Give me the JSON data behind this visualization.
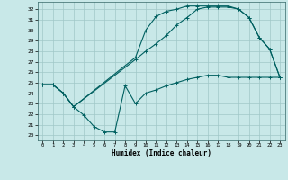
{
  "xlabel": "Humidex (Indice chaleur)",
  "bg_color": "#c8e8e8",
  "grid_color": "#a0c8c8",
  "line_color": "#006060",
  "xlim": [
    -0.5,
    23.5
  ],
  "ylim": [
    19.5,
    32.7
  ],
  "yticks": [
    20,
    21,
    22,
    23,
    24,
    25,
    26,
    27,
    28,
    29,
    30,
    31,
    32
  ],
  "xticks": [
    0,
    1,
    2,
    3,
    4,
    5,
    6,
    7,
    8,
    9,
    10,
    11,
    12,
    13,
    14,
    15,
    16,
    17,
    18,
    19,
    20,
    21,
    22,
    23
  ],
  "line1_x": [
    0,
    1,
    2,
    3,
    4,
    5,
    6,
    7,
    8,
    9,
    10,
    11,
    12,
    13,
    14,
    15,
    16,
    17,
    18,
    19,
    20,
    21,
    22,
    23
  ],
  "line1_y": [
    24.8,
    24.8,
    24.0,
    22.7,
    21.9,
    20.8,
    20.3,
    20.3,
    24.7,
    23.0,
    24.0,
    24.3,
    24.7,
    25.0,
    25.3,
    25.5,
    25.7,
    25.7,
    25.5,
    25.5,
    25.5,
    25.5,
    25.5,
    25.5
  ],
  "line2_x": [
    0,
    1,
    2,
    3,
    9,
    10,
    11,
    12,
    13,
    14,
    15,
    16,
    17,
    18,
    19,
    20,
    21,
    22,
    23
  ],
  "line2_y": [
    24.8,
    24.8,
    24.0,
    22.7,
    27.4,
    30.0,
    31.3,
    31.8,
    32.0,
    32.3,
    32.3,
    32.3,
    32.3,
    32.3,
    32.0,
    31.2,
    29.3,
    28.2,
    25.5
  ],
  "line3_x": [
    0,
    1,
    2,
    3,
    9,
    10,
    11,
    12,
    13,
    14,
    15,
    16,
    17,
    18,
    19,
    20,
    21,
    22,
    23
  ],
  "line3_y": [
    24.8,
    24.8,
    24.0,
    22.7,
    27.2,
    28.0,
    28.7,
    29.5,
    30.5,
    31.2,
    32.0,
    32.2,
    32.2,
    32.2,
    32.0,
    31.2,
    29.3,
    28.2,
    25.5
  ]
}
